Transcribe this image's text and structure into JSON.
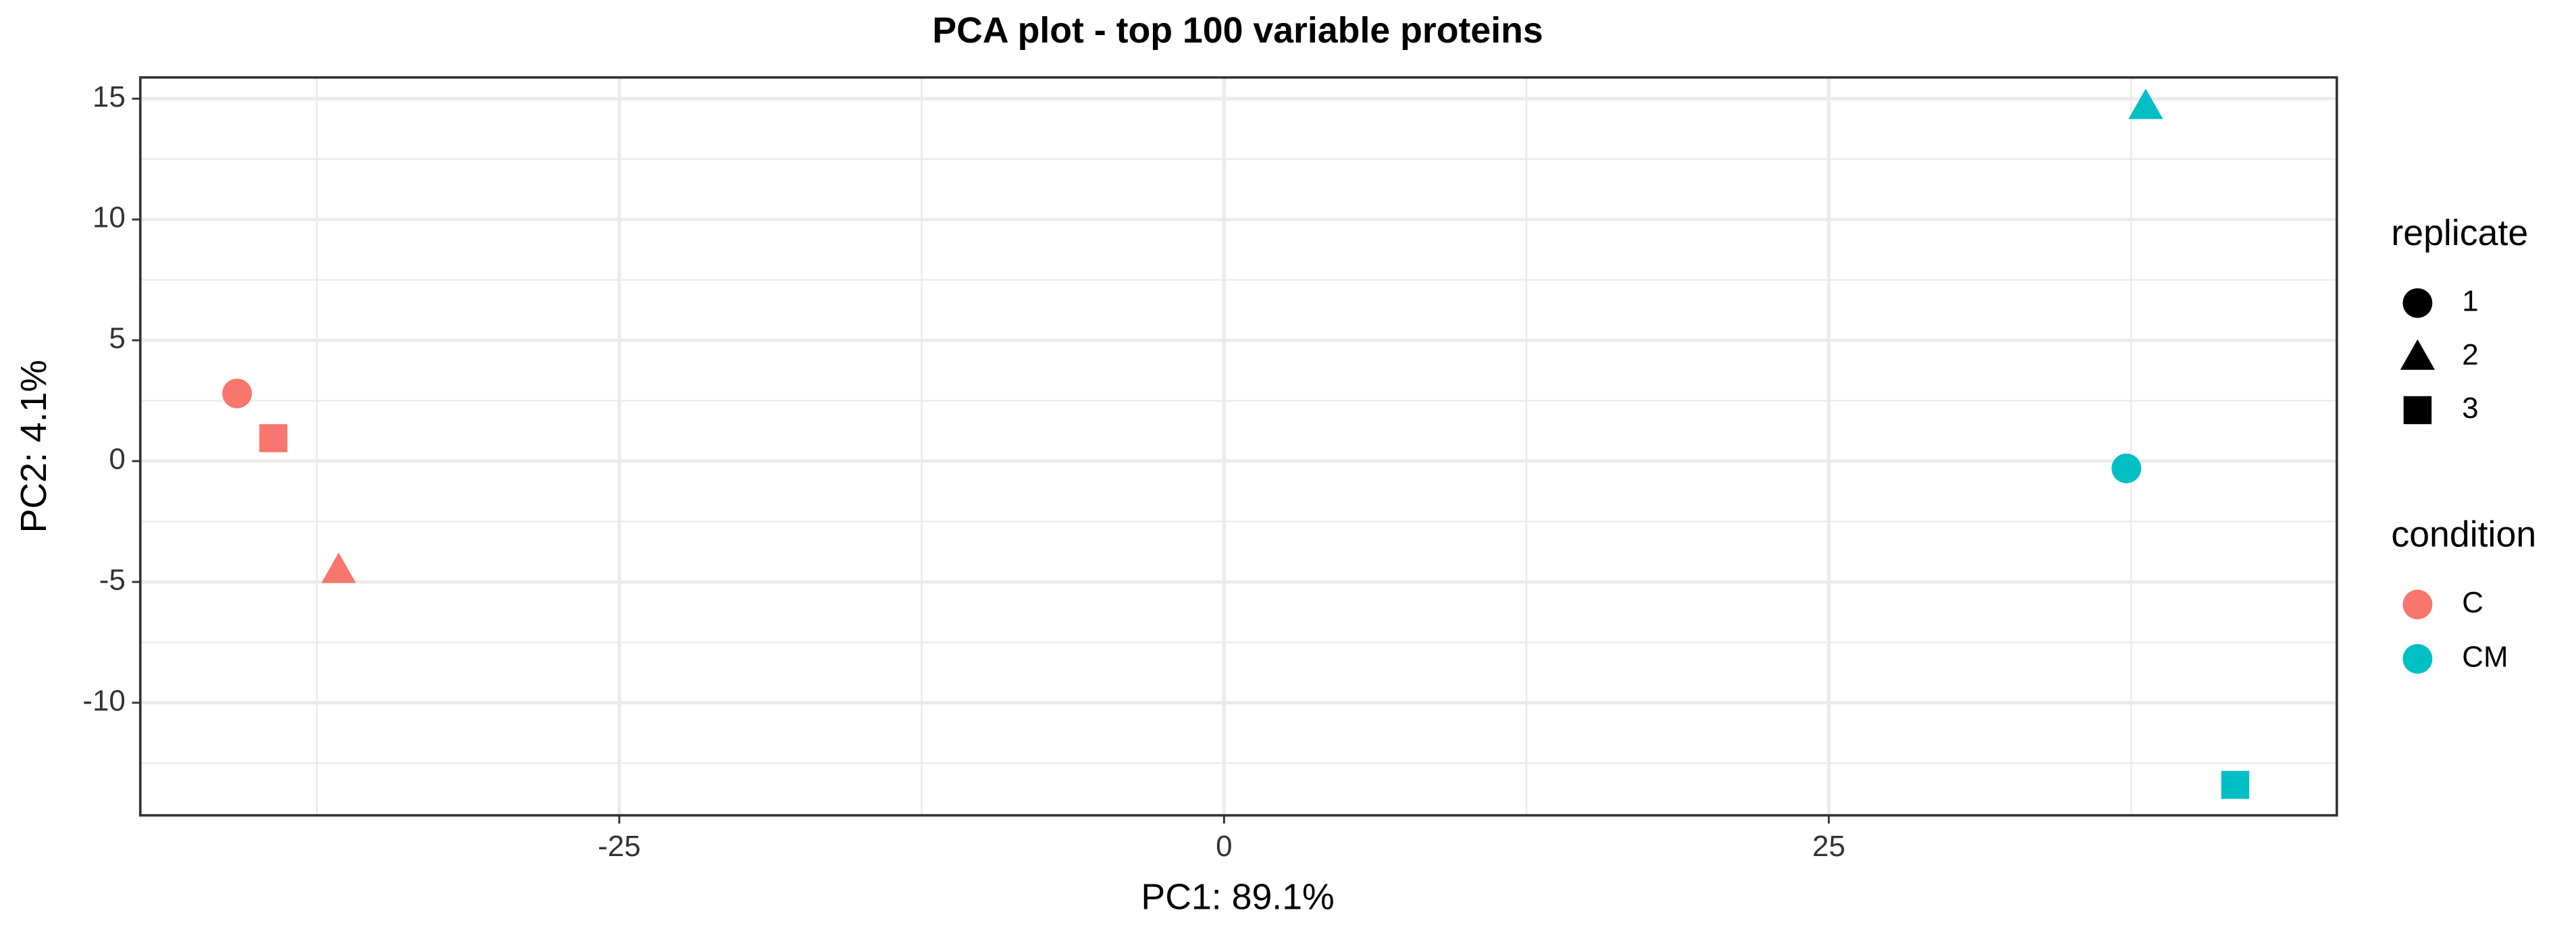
{
  "chart_data": {
    "type": "scatter",
    "title": "PCA plot - top 100 variable proteins",
    "x_label": "PC1: 89.1%",
    "y_label": "PC2: 4.1%",
    "xlim": [
      -44.8,
      46.0
    ],
    "ylim": [
      -14.66,
      15.88
    ],
    "xticks": [
      -25,
      0,
      25
    ],
    "yticks": [
      -10,
      -5,
      0,
      5,
      10,
      15
    ],
    "x_minor_grid": [
      -37.5,
      -12.5,
      12.5,
      37.5
    ],
    "y_minor_grid": [
      -12.5,
      -7.5,
      -2.5,
      2.5,
      7.5,
      12.5
    ],
    "grid": true,
    "color_legend_title": "condition",
    "shape_legend": {
      "title": "replicate",
      "items": [
        {
          "label": "1",
          "shape": "circle"
        },
        {
          "label": "2",
          "shape": "triangle"
        },
        {
          "label": "3",
          "shape": "square"
        }
      ]
    },
    "series": [
      {
        "name": "C",
        "color": "#F8766D",
        "x": [
          -40.8,
          -36.6,
          -39.3
        ],
        "y": [
          2.8,
          -4.5,
          0.95
        ],
        "replicate": [
          "1",
          "2",
          "3"
        ]
      },
      {
        "name": "CM",
        "color": "#00BFC4",
        "x": [
          37.3,
          38.1,
          41.8
        ],
        "y": [
          -0.3,
          14.7,
          -13.4
        ],
        "replicate": [
          "1",
          "2",
          "3"
        ]
      }
    ]
  }
}
